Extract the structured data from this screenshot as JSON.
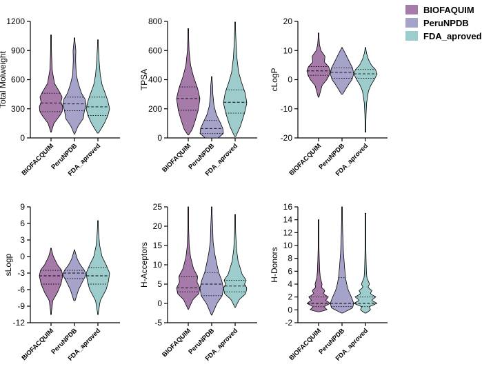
{
  "legend": {
    "items": [
      {
        "label": "BIOFAQUIM",
        "color": "#a67aa9"
      },
      {
        "label": "PeruNPDB",
        "color": "#a6a3cb"
      },
      {
        "label": "FDA_aproved",
        "color": "#9ccdcc"
      }
    ]
  },
  "chart_data": [
    {
      "type": "violin",
      "ylabel": "Total Molweight",
      "ylim": [
        0,
        1200
      ],
      "yticks": [
        0,
        300,
        600,
        900,
        1200
      ],
      "categories": [
        "BIOFACQUIM",
        "PeruNPDB",
        "FDA_aproved"
      ],
      "series": [
        {
          "name": "BIOFAQUIM",
          "min": 60,
          "max": 1060,
          "q1": 270,
          "median": 360,
          "q3": 460,
          "profile": [
            [
              60,
              0.02
            ],
            [
              150,
              0.25
            ],
            [
              230,
              0.75
            ],
            [
              270,
              0.95
            ],
            [
              320,
              1.0
            ],
            [
              370,
              0.85
            ],
            [
              420,
              0.95
            ],
            [
              480,
              0.7
            ],
            [
              560,
              0.3
            ],
            [
              700,
              0.1
            ],
            [
              850,
              0.05
            ],
            [
              1060,
              0.01
            ]
          ]
        },
        {
          "name": "PeruNPDB",
          "min": 40,
          "max": 1030,
          "q1": 280,
          "median": 350,
          "q3": 420,
          "profile": [
            [
              40,
              0.02
            ],
            [
              120,
              0.3
            ],
            [
              200,
              0.75
            ],
            [
              280,
              0.85
            ],
            [
              340,
              1.0
            ],
            [
              400,
              0.9
            ],
            [
              460,
              0.6
            ],
            [
              550,
              0.35
            ],
            [
              650,
              0.15
            ],
            [
              800,
              0.1
            ],
            [
              900,
              0.12
            ],
            [
              1030,
              0.01
            ]
          ]
        },
        {
          "name": "FDA_aproved",
          "min": 50,
          "max": 1010,
          "q1": 230,
          "median": 320,
          "q3": 420,
          "profile": [
            [
              50,
              0.05
            ],
            [
              150,
              0.55
            ],
            [
              230,
              0.85
            ],
            [
              300,
              1.0
            ],
            [
              380,
              0.85
            ],
            [
              450,
              0.65
            ],
            [
              550,
              0.35
            ],
            [
              650,
              0.2
            ],
            [
              800,
              0.1
            ],
            [
              1010,
              0.01
            ]
          ]
        }
      ]
    },
    {
      "type": "violin",
      "ylabel": "TPSA",
      "ylim": [
        0,
        800
      ],
      "yticks": [
        0,
        200,
        400,
        600,
        800
      ],
      "categories": [
        "BIOFAQUIM",
        "PeruNPDB",
        "FDA_aproved"
      ],
      "series": [
        {
          "name": "BIOFAQUIM",
          "min": 20,
          "max": 750,
          "q1": 190,
          "median": 270,
          "q3": 350,
          "profile": [
            [
              20,
              0.03
            ],
            [
              60,
              0.35
            ],
            [
              120,
              0.6
            ],
            [
              190,
              0.85
            ],
            [
              270,
              1.0
            ],
            [
              340,
              0.8
            ],
            [
              420,
              0.45
            ],
            [
              500,
              0.2
            ],
            [
              600,
              0.07
            ],
            [
              750,
              0.01
            ]
          ]
        },
        {
          "name": "PeruNPDB",
          "min": 0,
          "max": 420,
          "q1": 30,
          "median": 65,
          "q3": 120,
          "profile": [
            [
              0,
              0.55
            ],
            [
              30,
              1.0
            ],
            [
              65,
              0.95
            ],
            [
              110,
              0.7
            ],
            [
              160,
              0.4
            ],
            [
              220,
              0.2
            ],
            [
              300,
              0.1
            ],
            [
              360,
              0.08
            ],
            [
              420,
              0.01
            ]
          ]
        },
        {
          "name": "FDA_aproved",
          "min": 10,
          "max": 795,
          "q1": 170,
          "median": 245,
          "q3": 330,
          "profile": [
            [
              10,
              0.05
            ],
            [
              80,
              0.45
            ],
            [
              170,
              0.8
            ],
            [
              240,
              1.0
            ],
            [
              310,
              0.85
            ],
            [
              380,
              0.55
            ],
            [
              450,
              0.3
            ],
            [
              550,
              0.15
            ],
            [
              650,
              0.08
            ],
            [
              795,
              0.01
            ]
          ]
        }
      ]
    },
    {
      "type": "violin",
      "ylabel": "cLogP",
      "ylim": [
        -20,
        20
      ],
      "yticks": [
        -20,
        -10,
        0,
        10,
        20
      ],
      "categories": [
        "BIOFACQUIM",
        "PeruNPDB",
        "FDA_aproved"
      ],
      "series": [
        {
          "name": "BIOFAQUIM",
          "min": -6,
          "max": 16,
          "q1": 1.5,
          "median": 3,
          "q3": 4.5,
          "profile": [
            [
              -6,
              0.03
            ],
            [
              -2,
              0.3
            ],
            [
              0,
              0.7
            ],
            [
              1.5,
              0.9
            ],
            [
              3,
              1.0
            ],
            [
              4.5,
              0.85
            ],
            [
              6,
              0.5
            ],
            [
              8,
              0.55
            ],
            [
              10,
              0.2
            ],
            [
              12,
              0.08
            ],
            [
              16,
              0.01
            ]
          ]
        },
        {
          "name": "PeruNPDB",
          "min": -5,
          "max": 11,
          "q1": 0.5,
          "median": 2.5,
          "q3": 4,
          "profile": [
            [
              -5,
              0.05
            ],
            [
              -2,
              0.5
            ],
            [
              0,
              0.85
            ],
            [
              2,
              1.0
            ],
            [
              4,
              0.9
            ],
            [
              6,
              0.65
            ],
            [
              8,
              0.4
            ],
            [
              10,
              0.15
            ],
            [
              11,
              0.01
            ]
          ]
        },
        {
          "name": "FDA_aproved",
          "min": -18,
          "max": 11,
          "q1": 0.5,
          "median": 2,
          "q3": 3.5,
          "profile": [
            [
              -18,
              0.01
            ],
            [
              -12,
              0.05
            ],
            [
              -8,
              0.1
            ],
            [
              -4,
              0.25
            ],
            [
              -2,
              0.45
            ],
            [
              0,
              0.75
            ],
            [
              2,
              1.0
            ],
            [
              3.5,
              0.85
            ],
            [
              5,
              0.5
            ],
            [
              7,
              0.25
            ],
            [
              9,
              0.1
            ],
            [
              11,
              0.01
            ]
          ]
        }
      ]
    },
    {
      "type": "violin",
      "ylabel": "sLogp",
      "ylim": [
        -12,
        9
      ],
      "yticks": [
        -12,
        -9,
        -6,
        -3,
        0,
        3,
        6,
        9
      ],
      "categories": [
        "BIOFACQUIM",
        "PeruNPDB",
        "FDA_aproved"
      ],
      "series": [
        {
          "name": "BIOFAQUIM",
          "min": -10.5,
          "max": 1.5,
          "q1": -5,
          "median": -3.5,
          "q3": -2.5,
          "profile": [
            [
              -10.5,
              0.01
            ],
            [
              -8,
              0.15
            ],
            [
              -6.5,
              0.55
            ],
            [
              -5,
              0.85
            ],
            [
              -3.5,
              1.0
            ],
            [
              -2.5,
              0.9
            ],
            [
              -1.5,
              0.55
            ],
            [
              0,
              0.2
            ],
            [
              1.5,
              0.01
            ]
          ]
        },
        {
          "name": "PeruNPDB",
          "min": -8,
          "max": 1.2,
          "q1": -4,
          "median": -3,
          "q3": -2.5,
          "profile": [
            [
              -8,
              0.05
            ],
            [
              -6,
              0.35
            ],
            [
              -4.5,
              0.7
            ],
            [
              -3.3,
              1.0
            ],
            [
              -2.5,
              0.85
            ],
            [
              -1.5,
              0.5
            ],
            [
              -0.5,
              0.25
            ],
            [
              1.2,
              0.01
            ]
          ]
        },
        {
          "name": "FDA_aproved",
          "min": -10.5,
          "max": 6.5,
          "q1": -5,
          "median": -3.5,
          "q3": -2,
          "profile": [
            [
              -10.5,
              0.01
            ],
            [
              -8,
              0.2
            ],
            [
              -6,
              0.7
            ],
            [
              -4.5,
              0.9
            ],
            [
              -3,
              1.0
            ],
            [
              -1.5,
              0.7
            ],
            [
              0,
              0.35
            ],
            [
              2,
              0.15
            ],
            [
              4,
              0.07
            ],
            [
              6.5,
              0.01
            ]
          ]
        }
      ]
    },
    {
      "type": "violin",
      "ylabel": "H-Acceptors",
      "ylim": [
        -5,
        25
      ],
      "yticks": [
        -5,
        0,
        5,
        10,
        15,
        20,
        25
      ],
      "categories": [
        "BIOFAQUIM",
        "PeruNPDB",
        "FDA_aproved"
      ],
      "series": [
        {
          "name": "BIOFAQUIM",
          "min": -1.5,
          "max": 25,
          "q1": 3,
          "median": 4,
          "q3": 7,
          "profile": [
            [
              -1.5,
              0.02
            ],
            [
              1,
              0.4
            ],
            [
              2.5,
              0.9
            ],
            [
              4,
              1.0
            ],
            [
              5.5,
              0.75
            ],
            [
              7,
              0.8
            ],
            [
              9,
              0.45
            ],
            [
              12,
              0.2
            ],
            [
              15,
              0.08
            ],
            [
              20,
              0.03
            ],
            [
              25,
              0.01
            ]
          ]
        },
        {
          "name": "PeruNPDB",
          "min": -3,
          "max": 25,
          "q1": 2,
          "median": 5,
          "q3": 8,
          "profile": [
            [
              -3,
              0.02
            ],
            [
              0,
              0.45
            ],
            [
              2,
              0.9
            ],
            [
              4,
              1.0
            ],
            [
              6,
              0.85
            ],
            [
              8,
              0.6
            ],
            [
              10,
              0.45
            ],
            [
              13,
              0.25
            ],
            [
              16,
              0.12
            ],
            [
              20,
              0.08
            ],
            [
              25,
              0.01
            ]
          ]
        },
        {
          "name": "FDA_aproved",
          "min": -1,
          "max": 23,
          "q1": 3,
          "median": 4.5,
          "q3": 6,
          "profile": [
            [
              -1,
              0.02
            ],
            [
              1,
              0.35
            ],
            [
              2.5,
              0.9
            ],
            [
              4,
              1.0
            ],
            [
              5,
              0.8
            ],
            [
              6,
              0.95
            ],
            [
              7.5,
              0.6
            ],
            [
              9,
              0.45
            ],
            [
              11,
              0.25
            ],
            [
              14,
              0.12
            ],
            [
              18,
              0.05
            ],
            [
              23,
              0.01
            ]
          ]
        }
      ]
    },
    {
      "type": "violin",
      "ylabel": "H-Donors",
      "ylim": [
        -2,
        16
      ],
      "yticks": [
        -2,
        0,
        2,
        4,
        6,
        8,
        10,
        12,
        14,
        16
      ],
      "categories": [
        "BIOFACQUIM",
        "PeruNPDB",
        "FDA_aproved"
      ],
      "series": [
        {
          "name": "BIOFAQUIM",
          "min": -0.3,
          "max": 14,
          "q1": 0.5,
          "median": 1,
          "q3": 2,
          "profile": [
            [
              -0.3,
              0.05
            ],
            [
              0,
              0.75
            ],
            [
              0.5,
              0.45
            ],
            [
              1,
              1.0
            ],
            [
              1.5,
              0.6
            ],
            [
              2,
              0.85
            ],
            [
              2.5,
              0.4
            ],
            [
              3,
              0.55
            ],
            [
              3.5,
              0.25
            ],
            [
              4,
              0.3
            ],
            [
              5,
              0.15
            ],
            [
              6,
              0.1
            ],
            [
              8,
              0.06
            ],
            [
              10,
              0.03
            ],
            [
              14,
              0.01
            ]
          ]
        },
        {
          "name": "PeruNPDB",
          "min": -0.5,
          "max": 16,
          "q1": 0.5,
          "median": 1,
          "q3": 5,
          "profile": [
            [
              -0.5,
              0.05
            ],
            [
              0.3,
              0.9
            ],
            [
              1,
              1.0
            ],
            [
              2,
              0.8
            ],
            [
              3,
              0.55
            ],
            [
              4,
              0.4
            ],
            [
              5,
              0.3
            ],
            [
              7,
              0.2
            ],
            [
              9,
              0.12
            ],
            [
              12,
              0.06
            ],
            [
              16,
              0.01
            ]
          ]
        },
        {
          "name": "FDA_aproved",
          "min": -0.5,
          "max": 15,
          "q1": 0.5,
          "median": 1,
          "q3": 2,
          "profile": [
            [
              -0.5,
              0.05
            ],
            [
              0,
              0.45
            ],
            [
              0.5,
              0.3
            ],
            [
              1,
              1.0
            ],
            [
              1.5,
              0.5
            ],
            [
              2,
              0.9
            ],
            [
              2.5,
              0.4
            ],
            [
              3,
              0.55
            ],
            [
              3.5,
              0.2
            ],
            [
              4,
              0.35
            ],
            [
              5,
              0.12
            ],
            [
              6,
              0.08
            ],
            [
              8,
              0.05
            ],
            [
              11,
              0.02
            ],
            [
              15,
              0.01
            ]
          ]
        }
      ]
    }
  ]
}
